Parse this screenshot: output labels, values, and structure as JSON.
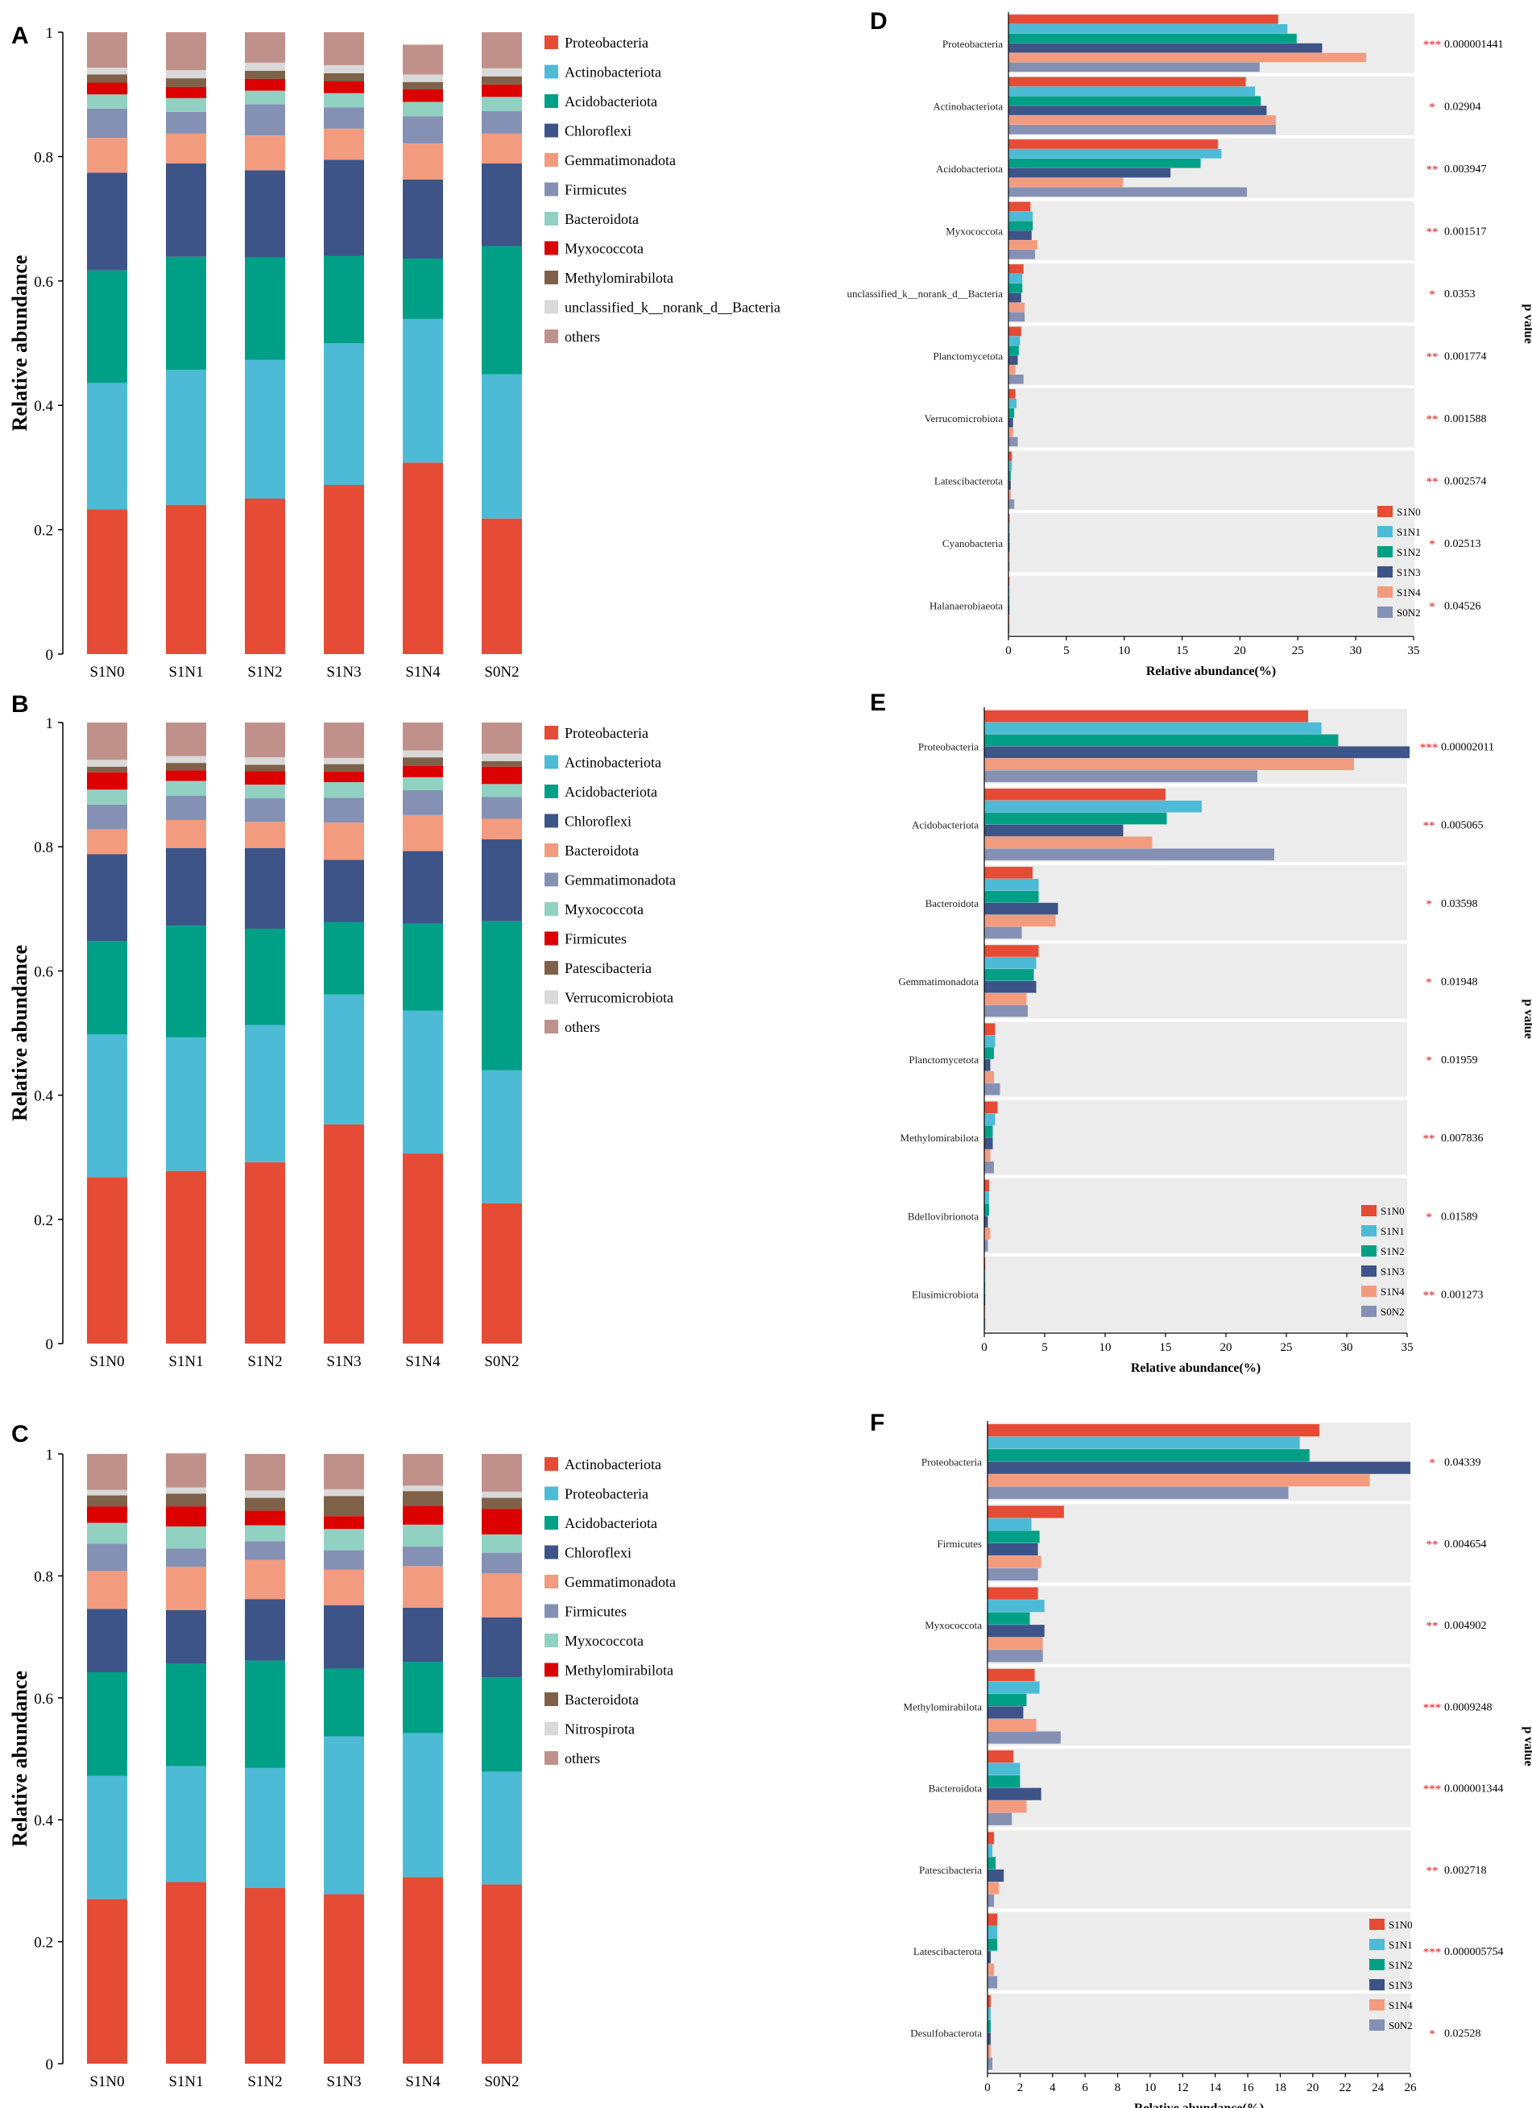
{
  "colors": {
    "S1N0": "#e64b35",
    "S1N1": "#4dbbd5",
    "S1N2": "#00a087",
    "S1N3": "#3c5488",
    "S1N4": "#f39b7f",
    "S0N2": "#8491b4",
    "sig": "#e41a1c",
    "bg": "#ececec"
  },
  "tax_colors": {
    "Proteobacteria": "#e64b35",
    "Actinobacteriota": "#4dbbd5",
    "Acidobacteriota": "#00a087",
    "Chloroflexi": "#3c5488",
    "Gemmatimonadota": "#f39b7f",
    "Firmicutes": "#8491b4",
    "Bacteroidota": "#91d1c2",
    "Myxococcota": "#dc0000",
    "Methylomirabilota": "#7e6148",
    "unclassified_k__norank_d__Bacteria": "#d9d9d9",
    "others": "#c0918a"
  },
  "chart_data": [
    {
      "id": "A",
      "type": "bar",
      "stacked": true,
      "letter": "A",
      "ylabel": "Relative abundance",
      "xlabel": "",
      "ylim": [
        0,
        1
      ],
      "yticks": [
        "0",
        "0.2",
        "0.4",
        "0.6",
        "0.8",
        "1"
      ],
      "categories": [
        "S1N0",
        "S1N1",
        "S1N2",
        "S1N3",
        "S1N4",
        "S0N2"
      ],
      "legend_position": "right",
      "series": [
        {
          "name": "Proteobacteria",
          "color": "#e64b35",
          "values": [
            0.233,
            0.24,
            0.25,
            0.272,
            0.308,
            0.218
          ]
        },
        {
          "name": "Actinobacteriota",
          "color": "#4dbbd5",
          "values": [
            0.203,
            0.217,
            0.223,
            0.228,
            0.231,
            0.232
          ]
        },
        {
          "name": "Acidobacteriota",
          "color": "#00a087",
          "values": [
            0.181,
            0.182,
            0.165,
            0.14,
            0.097,
            0.206
          ]
        },
        {
          "name": "Chloroflexi",
          "color": "#3c5488",
          "values": [
            0.157,
            0.15,
            0.14,
            0.155,
            0.127,
            0.133
          ]
        },
        {
          "name": "Gemmatimonadota",
          "color": "#f39b7f",
          "values": [
            0.056,
            0.048,
            0.056,
            0.05,
            0.058,
            0.048
          ]
        },
        {
          "name": "Firmicutes",
          "color": "#8491b4",
          "values": [
            0.047,
            0.035,
            0.05,
            0.034,
            0.044,
            0.036
          ]
        },
        {
          "name": "Bacteroidota",
          "color": "#91d1c2",
          "values": [
            0.023,
            0.022,
            0.022,
            0.023,
            0.023,
            0.023
          ]
        },
        {
          "name": "Myxococcota",
          "color": "#dc0000",
          "values": [
            0.019,
            0.018,
            0.019,
            0.019,
            0.02,
            0.02
          ]
        },
        {
          "name": "Methylomirabilota",
          "color": "#7e6148",
          "values": [
            0.013,
            0.014,
            0.013,
            0.013,
            0.012,
            0.013
          ]
        },
        {
          "name": "unclassified_k__norank_d__Bacteria",
          "color": "#d9d9d9",
          "values": [
            0.011,
            0.013,
            0.013,
            0.013,
            0.012,
            0.013
          ]
        },
        {
          "name": "others",
          "color": "#c0918a",
          "values": [
            0.057,
            0.061,
            0.049,
            0.053,
            0.048,
            0.058
          ]
        }
      ]
    },
    {
      "id": "B",
      "type": "bar",
      "stacked": true,
      "letter": "B",
      "ylabel": "Relative abundance",
      "xlabel": "",
      "ylim": [
        0,
        1
      ],
      "yticks": [
        "0",
        "0.2",
        "0.4",
        "0.6",
        "0.8",
        "1"
      ],
      "categories": [
        "S1N0",
        "S1N1",
        "S1N2",
        "S1N3",
        "S1N4",
        "S0N2"
      ],
      "legend_position": "right",
      "series": [
        {
          "name": "Proteobacteria",
          "color": "#e64b35",
          "values": [
            0.268,
            0.278,
            0.292,
            0.353,
            0.306,
            0.226
          ]
        },
        {
          "name": "Actinobacteriota",
          "color": "#4dbbd5",
          "values": [
            0.23,
            0.215,
            0.221,
            0.209,
            0.23,
            0.214
          ]
        },
        {
          "name": "Acidobacteriota",
          "color": "#00a087",
          "values": [
            0.15,
            0.18,
            0.155,
            0.117,
            0.14,
            0.24
          ]
        },
        {
          "name": "Chloroflexi",
          "color": "#3c5488",
          "values": [
            0.14,
            0.125,
            0.13,
            0.1,
            0.117,
            0.132
          ]
        },
        {
          "name": "Bacteroidota",
          "color": "#f39b7f",
          "values": [
            0.04,
            0.045,
            0.042,
            0.06,
            0.058,
            0.033
          ]
        },
        {
          "name": "Gemmatimonadota",
          "color": "#8491b4",
          "values": [
            0.04,
            0.039,
            0.038,
            0.04,
            0.04,
            0.035
          ]
        },
        {
          "name": "Myxococcota",
          "color": "#91d1c2",
          "values": [
            0.024,
            0.024,
            0.022,
            0.025,
            0.021,
            0.021
          ]
        },
        {
          "name": "Firmicutes",
          "color": "#dc0000",
          "values": [
            0.028,
            0.017,
            0.022,
            0.017,
            0.018,
            0.028
          ]
        },
        {
          "name": "Patescibacteria",
          "color": "#7e6148",
          "values": [
            0.009,
            0.012,
            0.01,
            0.012,
            0.014,
            0.009
          ]
        },
        {
          "name": "Verrucomicrobiota",
          "color": "#d9d9d9",
          "values": [
            0.011,
            0.011,
            0.012,
            0.01,
            0.011,
            0.012
          ]
        },
        {
          "name": "others",
          "color": "#c0918a",
          "values": [
            0.06,
            0.054,
            0.056,
            0.057,
            0.045,
            0.05
          ]
        }
      ]
    },
    {
      "id": "C",
      "type": "bar",
      "stacked": true,
      "letter": "C",
      "ylabel": "Relative abundance",
      "xlabel": "",
      "ylim": [
        0,
        1
      ],
      "yticks": [
        "0",
        "0.2",
        "0.4",
        "0.6",
        "0.8",
        "1"
      ],
      "categories": [
        "S1N0",
        "S1N1",
        "S1N2",
        "S1N3",
        "S1N4",
        "S0N2"
      ],
      "legend_position": "right",
      "series": [
        {
          "name": "Actinobacteriota",
          "color": "#e64b35",
          "values": [
            0.27,
            0.298,
            0.288,
            0.278,
            0.306,
            0.294
          ]
        },
        {
          "name": "Proteobacteria",
          "color": "#4dbbd5",
          "values": [
            0.202,
            0.19,
            0.197,
            0.259,
            0.236,
            0.185
          ]
        },
        {
          "name": "Acidobacteriota",
          "color": "#00a087",
          "values": [
            0.17,
            0.168,
            0.176,
            0.111,
            0.117,
            0.155
          ]
        },
        {
          "name": "Chloroflexi",
          "color": "#3c5488",
          "values": [
            0.104,
            0.088,
            0.101,
            0.104,
            0.089,
            0.098
          ]
        },
        {
          "name": "Gemmatimonadota",
          "color": "#f39b7f",
          "values": [
            0.062,
            0.071,
            0.064,
            0.058,
            0.068,
            0.072
          ]
        },
        {
          "name": "Firmicutes",
          "color": "#8491b4",
          "values": [
            0.045,
            0.03,
            0.031,
            0.032,
            0.032,
            0.034
          ]
        },
        {
          "name": "Myxococcota",
          "color": "#91d1c2",
          "values": [
            0.034,
            0.036,
            0.026,
            0.035,
            0.036,
            0.03
          ]
        },
        {
          "name": "Methylomirabilota",
          "color": "#dc0000",
          "values": [
            0.027,
            0.033,
            0.024,
            0.021,
            0.031,
            0.042
          ]
        },
        {
          "name": "Bacteroidota",
          "color": "#7e6148",
          "values": [
            0.018,
            0.021,
            0.021,
            0.033,
            0.024,
            0.018
          ]
        },
        {
          "name": "Nitrospirota",
          "color": "#d9d9d9",
          "values": [
            0.009,
            0.01,
            0.012,
            0.011,
            0.009,
            0.01
          ]
        },
        {
          "name": "others",
          "color": "#c0918a",
          "values": [
            0.059,
            0.056,
            0.06,
            0.058,
            0.052,
            0.062
          ]
        }
      ]
    },
    {
      "id": "D",
      "type": "bar",
      "orientation": "horizontal",
      "letter": "D",
      "xlabel": "Relative abundance(%)",
      "side_label": "p value",
      "xlim": [
        0,
        35
      ],
      "xticks": [
        0,
        5,
        10,
        15,
        20,
        25,
        30,
        35
      ],
      "legend_position": "bottom-right",
      "groups": [
        "S1N0",
        "S1N1",
        "S1N2",
        "S1N3",
        "S1N4",
        "S0N2"
      ],
      "categories": [
        "Proteobacteria",
        "Actinobacteriota",
        "Acidobacteriota",
        "Myxococcota",
        "unclassified_k__norank_d__Bacteria",
        "Planctomycetota",
        "Verrucomicrobiota",
        "Latescibacterota",
        "Cyanobacteria",
        "Halanaerobiaeota"
      ],
      "values": [
        [
          23.3,
          24.1,
          24.9,
          27.1,
          30.9,
          21.7
        ],
        [
          20.5,
          21.3,
          21.8,
          22.3,
          23.1,
          23.1
        ],
        [
          18.1,
          18.4,
          16.6,
          14.0,
          9.9,
          20.6
        ],
        [
          1.9,
          2.1,
          2.1,
          2.0,
          2.5,
          2.3
        ],
        [
          1.3,
          1.2,
          1.2,
          1.1,
          1.4,
          1.4
        ],
        [
          1.1,
          1.0,
          0.9,
          0.8,
          0.6,
          1.3
        ],
        [
          0.6,
          0.7,
          0.5,
          0.4,
          0.4,
          0.8
        ],
        [
          0.3,
          0.3,
          0.2,
          0.2,
          0.2,
          0.5
        ],
        [
          0.1,
          0.1,
          0.1,
          0.1,
          0.1,
          0.1
        ],
        [
          0.05,
          0.05,
          0.05,
          0.05,
          0.05,
          0.05
        ]
      ],
      "stars": [
        "***",
        "*",
        "**",
        "**",
        "*",
        "**",
        "**",
        "**",
        "*",
        "*"
      ],
      "pvalues": [
        "0.000001441",
        "0.02904",
        "0.003947",
        "0.001517",
        "0.0353",
        "0.001774",
        "0.001588",
        "0.002574",
        "0.02513",
        "0.04526"
      ]
    },
    {
      "id": "E",
      "type": "bar",
      "orientation": "horizontal",
      "letter": "E",
      "xlabel": "Relative abundance(%)",
      "side_label": "p value",
      "xlim": [
        0,
        35
      ],
      "xticks": [
        0,
        5,
        10,
        15,
        20,
        25,
        30,
        35
      ],
      "legend_position": "bottom-right",
      "groups": [
        "S1N0",
        "S1N1",
        "S1N2",
        "S1N3",
        "S1N4",
        "S0N2"
      ],
      "categories": [
        "Proteobacteria",
        "Acidobacteriota",
        "Bacteroidota",
        "Gemmatimonadota",
        "Planctomycetota",
        "Methylomirabilota",
        "Bdellovibrionota",
        "Elusimicrobiota"
      ],
      "values": [
        [
          26.8,
          27.9,
          29.3,
          35.2,
          30.6,
          22.6
        ],
        [
          15.0,
          18.0,
          15.1,
          11.5,
          13.9,
          24.0
        ],
        [
          4.0,
          4.5,
          4.5,
          6.1,
          5.9,
          3.1
        ],
        [
          4.5,
          4.3,
          4.1,
          4.3,
          3.5,
          3.6
        ],
        [
          0.9,
          0.9,
          0.8,
          0.5,
          0.8,
          1.3
        ],
        [
          1.1,
          0.9,
          0.7,
          0.7,
          0.5,
          0.8
        ],
        [
          0.4,
          0.4,
          0.4,
          0.3,
          0.5,
          0.3
        ],
        [
          0.05,
          0.05,
          0.05,
          0.05,
          0.05,
          0.05
        ]
      ],
      "stars": [
        "***",
        "**",
        "*",
        "*",
        "*",
        "**",
        "*",
        "**"
      ],
      "pvalues": [
        "0.00002011",
        "0.005065",
        "0.03598",
        "0.01948",
        "0.01959",
        "0.007836",
        "0.01589",
        "0.001273"
      ]
    },
    {
      "id": "F",
      "type": "bar",
      "orientation": "horizontal",
      "letter": "F",
      "xlabel": "Relative abundance(%)",
      "side_label": "p value",
      "xlim": [
        0,
        26
      ],
      "xticks": [
        0,
        2,
        4,
        6,
        8,
        10,
        12,
        14,
        16,
        18,
        20,
        22,
        24,
        26
      ],
      "legend_position": "bottom-right",
      "groups": [
        "S1N0",
        "S1N1",
        "S1N2",
        "S1N3",
        "S1N4",
        "S0N2"
      ],
      "categories": [
        "Proteobacteria",
        "Firmicutes",
        "Myxococcota",
        "Methylomirabilota",
        "Bacteroidota",
        "Patescibacteria",
        "Latescibacterota",
        "Desulfobacterota"
      ],
      "values": [
        [
          20.4,
          19.2,
          19.8,
          26.0,
          23.5,
          18.5
        ],
        [
          4.7,
          2.7,
          3.2,
          3.1,
          3.3,
          3.1
        ],
        [
          3.1,
          3.5,
          2.6,
          3.5,
          3.4,
          3.4
        ],
        [
          2.9,
          3.2,
          2.4,
          2.2,
          3.0,
          4.5
        ],
        [
          1.6,
          2.0,
          2.0,
          3.3,
          2.4,
          1.5
        ],
        [
          0.4,
          0.3,
          0.5,
          1.0,
          0.7,
          0.4
        ],
        [
          0.6,
          0.6,
          0.6,
          0.2,
          0.4,
          0.6
        ],
        [
          0.2,
          0.2,
          0.2,
          0.2,
          0.2,
          0.3
        ]
      ],
      "stars": [
        "*",
        "**",
        "**",
        "***",
        "***",
        "**",
        "***",
        "*"
      ],
      "pvalues": [
        "0.04339",
        "0.004654",
        "0.004902",
        "0.0009248",
        "0.000001344",
        "0.002718",
        "0.000005754",
        "0.02528"
      ]
    }
  ]
}
